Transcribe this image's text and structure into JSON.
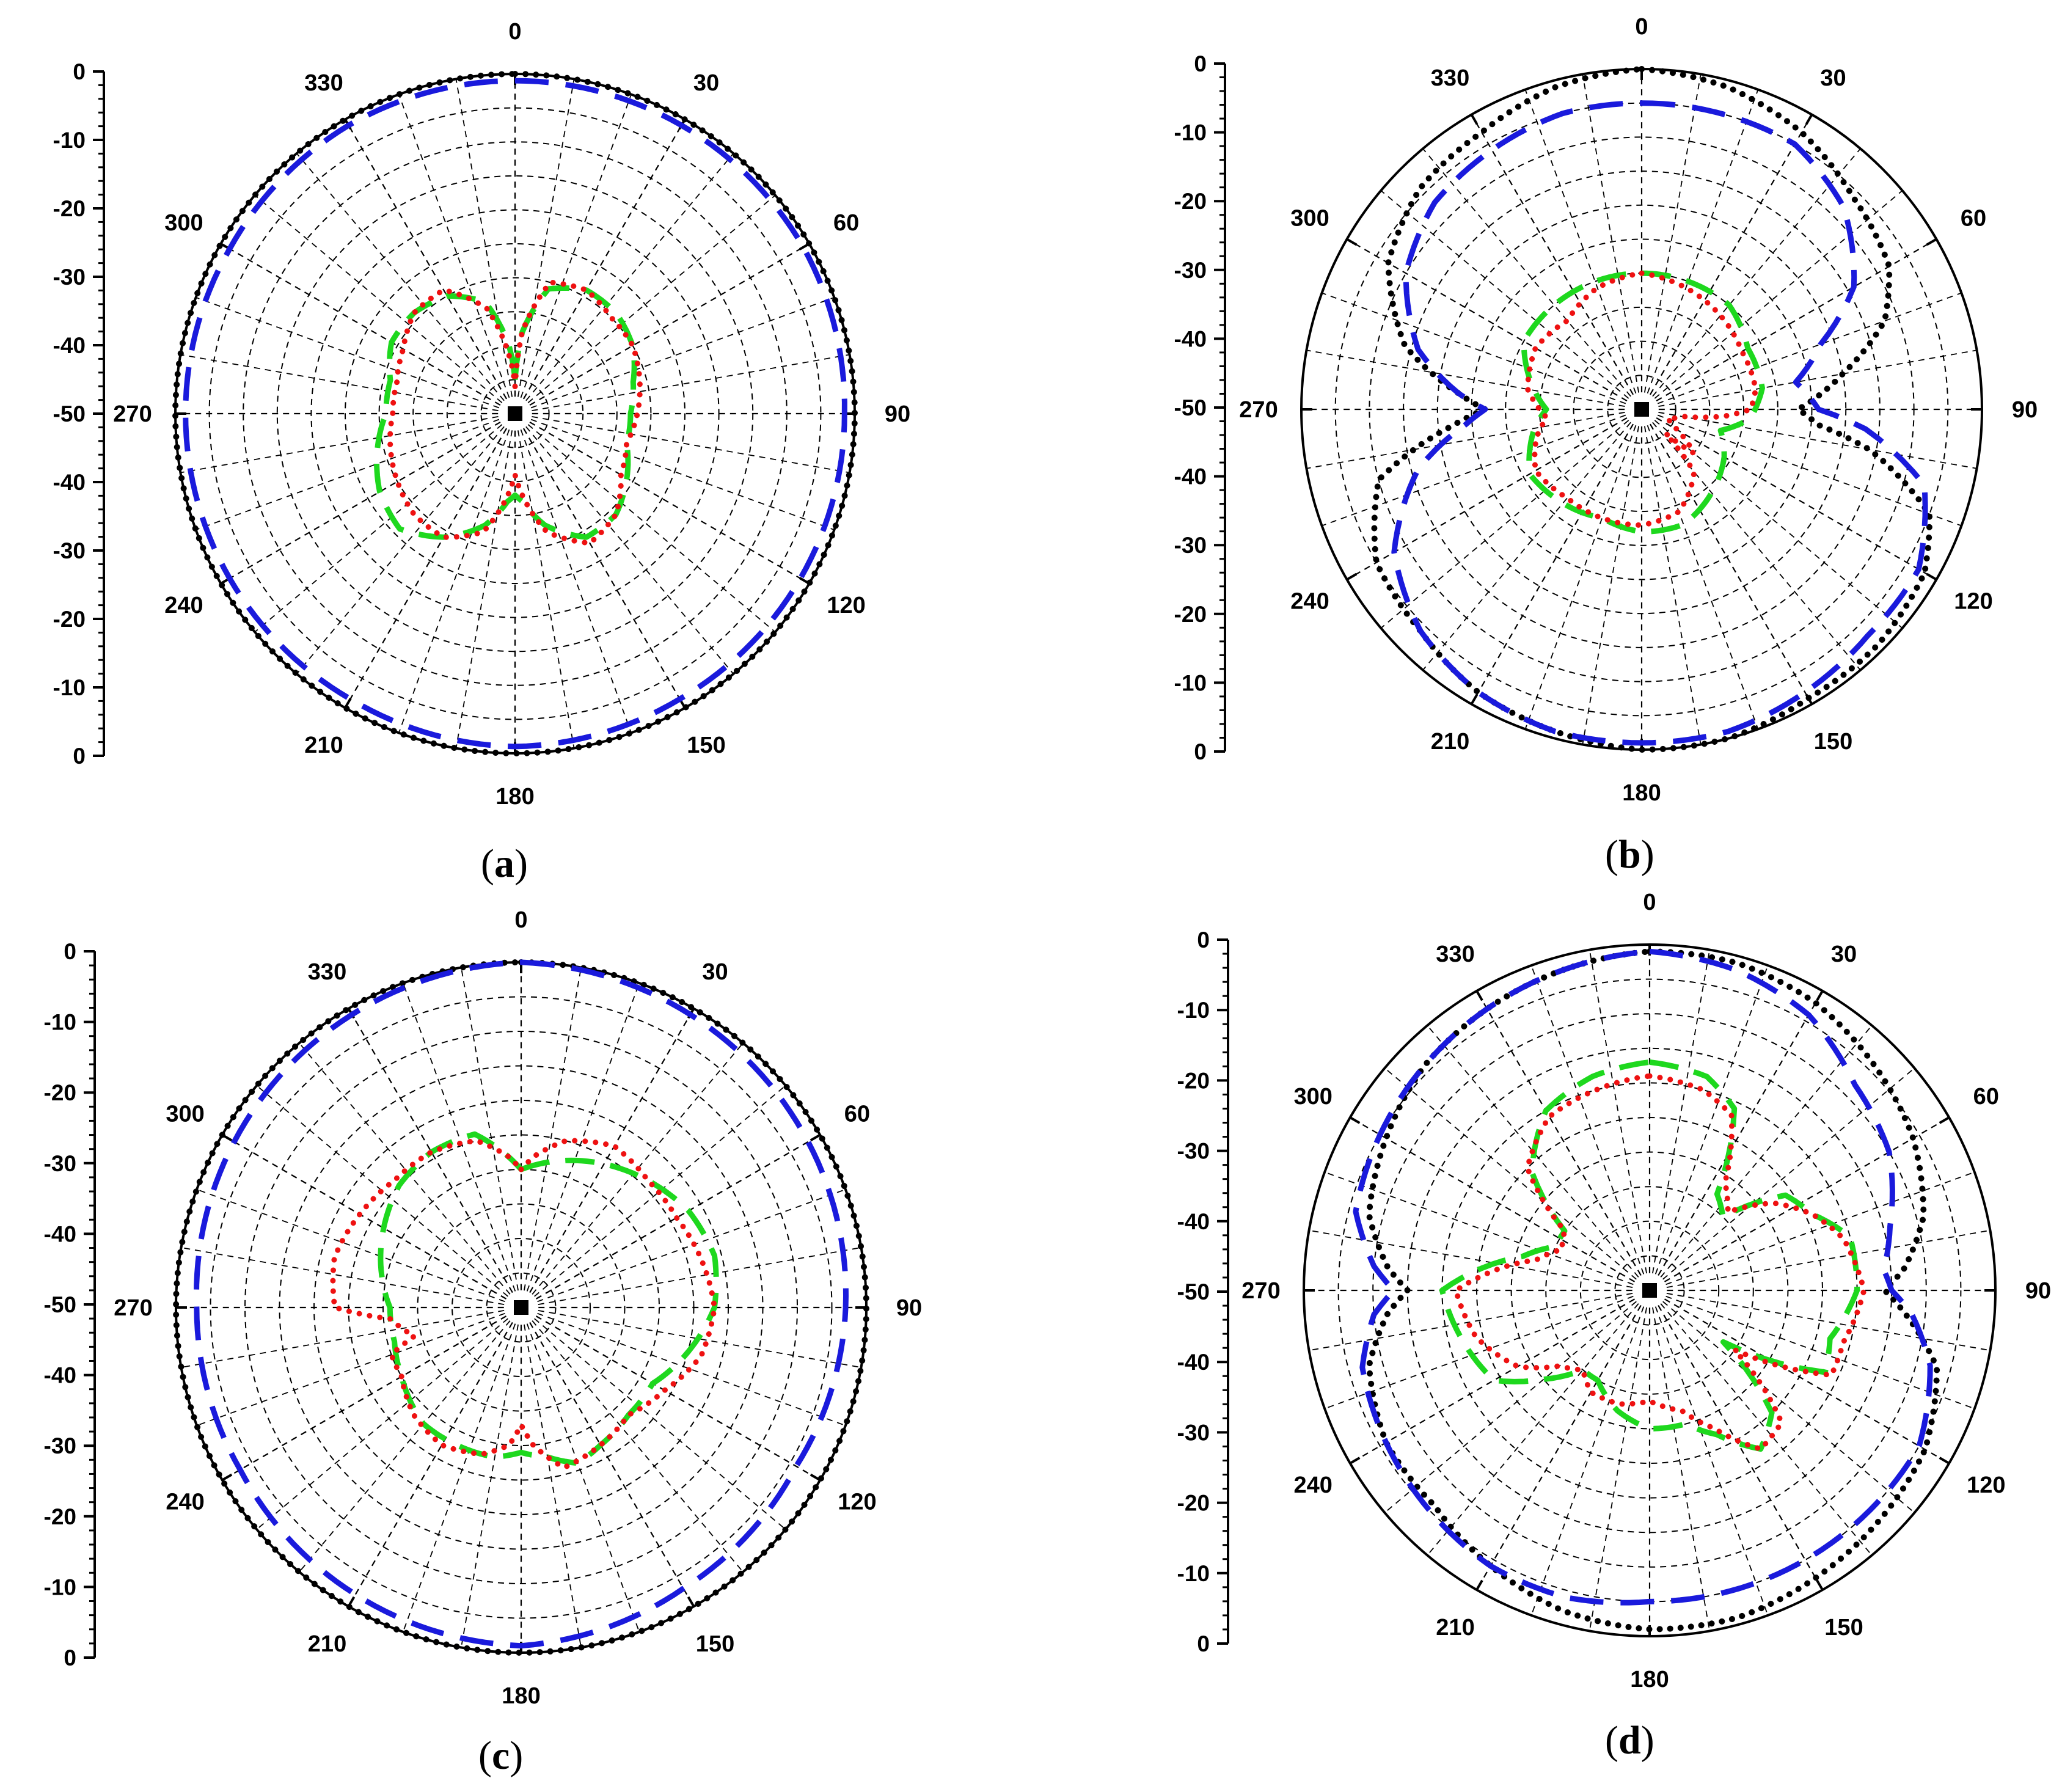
{
  "figure": {
    "panels": [
      {
        "caption_open": "(",
        "caption_letter": "a",
        "caption_close": ")"
      },
      {
        "caption_open": "(",
        "caption_letter": "b",
        "caption_close": ")"
      },
      {
        "caption_open": "(",
        "caption_letter": "c",
        "caption_close": ")"
      },
      {
        "caption_open": "(",
        "caption_letter": "d",
        "caption_close": ")"
      }
    ]
  },
  "chart_data": [
    {
      "type": "polar-line",
      "label": "(a)",
      "angle_ticks": [
        0,
        30,
        60,
        90,
        120,
        150,
        180,
        210,
        240,
        270,
        300,
        330
      ],
      "radial_axis_ticks": [
        "0",
        "-10",
        "-20",
        "-30",
        "-40",
        "-50",
        "-40",
        "-30",
        "-20",
        "-10",
        "0"
      ],
      "radial_range_dB": [
        -50,
        0
      ],
      "series": [
        {
          "style": "dotted",
          "color": "#000000",
          "angles": [
            0,
            30,
            60,
            90,
            120,
            150,
            180,
            210,
            240,
            270,
            300,
            330,
            360
          ],
          "values": [
            0,
            0,
            0,
            0,
            0,
            0,
            0,
            0,
            0,
            0,
            0,
            0,
            0
          ]
        },
        {
          "style": "dashed",
          "color": "#1a1adc",
          "angles": [
            0,
            30,
            60,
            90,
            120,
            150,
            180,
            210,
            240,
            270,
            300,
            330,
            360
          ],
          "values": [
            -1,
            -1,
            -1,
            -1.5,
            -1.5,
            -1.5,
            -1,
            -1.5,
            -1.5,
            -1.5,
            -1.5,
            -1,
            -1
          ]
        },
        {
          "style": "dashed",
          "color": "#1ed81e",
          "angles": [
            0,
            5,
            15,
            30,
            45,
            60,
            75,
            90,
            105,
            120,
            135,
            150,
            165,
            175,
            180,
            185,
            195,
            210,
            225,
            240,
            255,
            270,
            285,
            300,
            315,
            330,
            345,
            355,
            360
          ],
          "values": [
            -45,
            -38,
            -31,
            -29,
            -29,
            -30,
            -32,
            -33,
            -33,
            -31,
            -29,
            -29,
            -33,
            -37,
            -38,
            -37,
            -33,
            -29,
            -26,
            -27,
            -29,
            -31,
            -31,
            -29,
            -29,
            -30,
            -33,
            -40,
            -45
          ]
        },
        {
          "style": "dotted",
          "color": "#ee1111",
          "angles": [
            0,
            5,
            15,
            30,
            45,
            60,
            75,
            90,
            105,
            120,
            135,
            150,
            165,
            175,
            180,
            185,
            195,
            210,
            225,
            240,
            255,
            270,
            285,
            300,
            315,
            330,
            345,
            355,
            360
          ],
          "values": [
            -46,
            -38,
            -30,
            -29,
            -30,
            -30,
            -31,
            -32,
            -33,
            -32,
            -29,
            -28,
            -32,
            -38,
            -41,
            -38,
            -32,
            -29,
            -29,
            -30,
            -31,
            -32,
            -32,
            -31,
            -29,
            -29,
            -34,
            -42,
            -46
          ]
        }
      ]
    },
    {
      "type": "polar-line",
      "label": "(b)",
      "angle_ticks": [
        0,
        30,
        60,
        90,
        120,
        150,
        180,
        210,
        240,
        270,
        300,
        330
      ],
      "radial_axis_ticks": [
        "0",
        "-10",
        "-20",
        "-30",
        "-40",
        "-50",
        "-40",
        "-30",
        "-20",
        "-10",
        "0"
      ],
      "radial_range_dB": [
        -50,
        0
      ],
      "series": [
        {
          "style": "dotted",
          "color": "#000000",
          "angles": [
            0,
            15,
            30,
            45,
            60,
            70,
            80,
            90,
            95,
            100,
            110,
            120,
            135,
            150,
            165,
            180,
            195,
            210,
            225,
            240,
            255,
            265,
            270,
            275,
            285,
            300,
            315,
            330,
            345,
            360
          ],
          "values": [
            0,
            -1,
            -3,
            -6,
            -8,
            -12,
            -20,
            -27,
            -24,
            -16,
            -5,
            -2,
            -1,
            -1,
            0,
            0,
            -1,
            -2,
            -4,
            -5,
            -10,
            -22,
            -27,
            -23,
            -14,
            -7,
            -4,
            -3,
            -1,
            0
          ]
        },
        {
          "style": "dashed",
          "color": "#1a1adc",
          "angles": [
            0,
            10,
            30,
            45,
            60,
            70,
            80,
            90,
            95,
            105,
            120,
            135,
            150,
            165,
            180,
            195,
            210,
            225,
            240,
            255,
            265,
            270,
            275,
            285,
            300,
            315,
            330,
            345,
            360
          ],
          "values": [
            -5,
            -5,
            -5,
            -8,
            -14,
            -22,
            -27,
            -24,
            -17,
            -7,
            -3,
            -3,
            -2,
            -1,
            -1,
            -1,
            -2,
            -4,
            -8,
            -16,
            -24,
            -27,
            -23,
            -16,
            -10,
            -7,
            -6,
            -5,
            -5
          ]
        },
        {
          "style": "dashed",
          "color": "#1ed81e",
          "angles": [
            0,
            20,
            40,
            60,
            80,
            95,
            105,
            120,
            140,
            160,
            180,
            200,
            220,
            240,
            260,
            270,
            280,
            300,
            320,
            340,
            360
          ],
          "values": [
            -30,
            -30,
            -30,
            -32,
            -32,
            -34,
            -38,
            -36,
            -34,
            -32,
            -32,
            -33,
            -32,
            -31,
            -34,
            -36,
            -34,
            -30,
            -30,
            -30,
            -30
          ]
        },
        {
          "style": "dotted",
          "color": "#ee1111",
          "angles": [
            0,
            20,
            40,
            60,
            80,
            90,
            95,
            100,
            110,
            120,
            130,
            135,
            140,
            160,
            180,
            200,
            220,
            240,
            255,
            265,
            270,
            280,
            300,
            320,
            340,
            360
          ],
          "values": [
            -30,
            -31,
            -32,
            -33,
            -33,
            -34,
            -38,
            -44,
            -46,
            -44,
            -40,
            -45,
            -38,
            -34,
            -33,
            -33,
            -33,
            -32,
            -34,
            -36,
            -35,
            -33,
            -32,
            -33,
            -31,
            -30
          ]
        }
      ]
    },
    {
      "type": "polar-line",
      "label": "(c)",
      "angle_ticks": [
        0,
        30,
        60,
        90,
        120,
        150,
        180,
        210,
        240,
        270,
        300,
        330
      ],
      "radial_axis_ticks": [
        "0",
        "-10",
        "-20",
        "-30",
        "-40",
        "-50",
        "-40",
        "-30",
        "-20",
        "-10",
        "0"
      ],
      "radial_range_dB": [
        -50,
        0
      ],
      "series": [
        {
          "style": "dotted",
          "color": "#000000",
          "angles": [
            0,
            30,
            60,
            90,
            120,
            150,
            180,
            210,
            240,
            270,
            300,
            330,
            360
          ],
          "values": [
            0,
            0,
            0,
            0,
            0,
            0,
            0,
            0,
            0,
            0,
            0,
            0,
            0
          ]
        },
        {
          "style": "dashed",
          "color": "#1a1adc",
          "angles": [
            0,
            30,
            60,
            90,
            120,
            150,
            180,
            210,
            240,
            270,
            300,
            330,
            360
          ],
          "values": [
            0,
            -1,
            -2,
            -3,
            -4,
            -3,
            -1,
            -2,
            -3,
            -3,
            -2,
            -1,
            0
          ]
        },
        {
          "style": "dashed",
          "color": "#1ed81e",
          "angles": [
            0,
            15,
            30,
            45,
            60,
            75,
            90,
            105,
            120,
            135,
            150,
            160,
            170,
            180,
            190,
            205,
            220,
            240,
            255,
            270,
            285,
            300,
            315,
            330,
            345,
            360
          ],
          "values": [
            -30,
            -28,
            -26,
            -24,
            -22,
            -21,
            -22,
            -25,
            -28,
            -28,
            -27,
            -26,
            -28,
            -29,
            -28,
            -28,
            -28,
            -30,
            -31,
            -31,
            -29,
            -27,
            -25,
            -24,
            -24,
            -30
          ]
        },
        {
          "style": "dotted",
          "color": "#ee1111",
          "angles": [
            0,
            5,
            15,
            30,
            45,
            60,
            75,
            90,
            105,
            120,
            135,
            150,
            165,
            175,
            180,
            185,
            195,
            210,
            225,
            240,
            250,
            255,
            265,
            270,
            285,
            300,
            315,
            330,
            345,
            355,
            360
          ],
          "values": [
            -30,
            -28,
            -25,
            -23,
            -24,
            -24,
            -23,
            -22,
            -23,
            -26,
            -28,
            -27,
            -26,
            -30,
            -33,
            -30,
            -28,
            -27,
            -28,
            -30,
            -30,
            -34,
            -31,
            -23,
            -22,
            -23,
            -24,
            -24,
            -25,
            -28,
            -30
          ]
        }
      ]
    },
    {
      "type": "polar-line",
      "label": "(d)",
      "angle_ticks": [
        0,
        30,
        60,
        90,
        120,
        150,
        180,
        210,
        240,
        270,
        300,
        330
      ],
      "radial_axis_ticks": [
        "0",
        "-10",
        "-20",
        "-30",
        "-40",
        "-50",
        "-40",
        "-30",
        "-20",
        "-10",
        "0"
      ],
      "radial_range_dB": [
        -50,
        0
      ],
      "series": [
        {
          "style": "dotted",
          "color": "#000000",
          "angles": [
            0,
            15,
            30,
            45,
            60,
            75,
            85,
            90,
            95,
            105,
            120,
            135,
            150,
            165,
            180,
            195,
            210,
            225,
            240,
            255,
            265,
            270,
            275,
            285,
            300,
            315,
            330,
            345,
            360
          ],
          "values": [
            -1,
            -1,
            -2,
            -4,
            -6,
            -9,
            -13,
            -16,
            -13,
            -7,
            -4,
            -3,
            -2,
            -1,
            -1,
            -2,
            -4,
            -6,
            -6,
            -8,
            -12,
            -15,
            -12,
            -8,
            -6,
            -4,
            -3,
            -2,
            -1
          ]
        },
        {
          "style": "dashed",
          "color": "#1a1adc",
          "angles": [
            0,
            15,
            30,
            45,
            60,
            75,
            85,
            90,
            95,
            105,
            120,
            135,
            150,
            165,
            180,
            195,
            210,
            225,
            240,
            255,
            265,
            270,
            275,
            285,
            300,
            315,
            330,
            345,
            360
          ],
          "values": [
            -1,
            -2,
            -4,
            -8,
            -10,
            -14,
            -16,
            -15,
            -12,
            -8,
            -5,
            -5,
            -5,
            -5,
            -5,
            -4,
            -4,
            -5,
            -6,
            -7,
            -10,
            -13,
            -10,
            -6,
            -5,
            -4,
            -3,
            -2,
            -1
          ]
        },
        {
          "style": "dashed",
          "color": "#1ed81e",
          "angles": [
            0,
            15,
            25,
            35,
            45,
            55,
            65,
            75,
            90,
            105,
            115,
            125,
            135,
            145,
            155,
            165,
            180,
            195,
            210,
            220,
            230,
            240,
            255,
            270,
            285,
            295,
            305,
            315,
            330,
            345,
            360
          ],
          "values": [
            -17,
            -18,
            -21,
            -33,
            -35,
            -26,
            -24,
            -20,
            -20,
            -23,
            -22,
            -37,
            -25,
            -22,
            -27,
            -30,
            -30,
            -32,
            -35,
            -35,
            -30,
            -24,
            -22,
            -20,
            -31,
            -35,
            -35,
            -26,
            -20,
            -18,
            -17
          ]
        },
        {
          "style": "dotted",
          "color": "#ee1111",
          "angles": [
            0,
            15,
            25,
            35,
            45,
            55,
            65,
            75,
            90,
            105,
            115,
            125,
            135,
            145,
            155,
            165,
            180,
            195,
            210,
            220,
            230,
            240,
            255,
            270,
            285,
            295,
            305,
            315,
            330,
            345,
            360
          ],
          "values": [
            -19,
            -20,
            -22,
            -31,
            -34,
            -28,
            -24,
            -21,
            -19,
            -21,
            -21,
            -35,
            -23,
            -22,
            -28,
            -32,
            -34,
            -33,
            -33,
            -35,
            -33,
            -28,
            -24,
            -22,
            -33,
            -36,
            -35,
            -25,
            -21,
            -20,
            -19
          ]
        }
      ]
    }
  ]
}
